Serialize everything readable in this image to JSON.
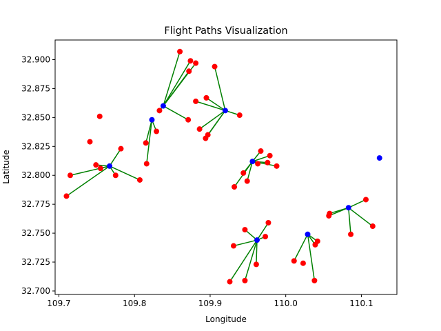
{
  "chart_data": {
    "type": "scatter",
    "title": "Flight Paths Visualization",
    "xlabel": "Longitude",
    "ylabel": "Latitude",
    "xlim": [
      109.695,
      110.147
    ],
    "ylim": [
      32.697,
      32.917
    ],
    "xticks": [
      109.7,
      109.8,
      109.9,
      110.0,
      110.1
    ],
    "xtick_labels": [
      "109.7",
      "109.8",
      "109.9",
      "110.0",
      "110.1"
    ],
    "yticks": [
      32.7,
      32.725,
      32.75,
      32.775,
      32.8,
      32.825,
      32.85,
      32.875,
      32.9
    ],
    "ytick_labels": [
      "32.700",
      "32.725",
      "32.750",
      "32.775",
      "32.800",
      "32.825",
      "32.850",
      "32.875",
      "32.900"
    ],
    "grid": false,
    "colors": {
      "hub": "#0000ff",
      "destination": "#ff0000",
      "path": "#008000"
    },
    "hubs": [
      {
        "x": 109.838,
        "y": 32.86,
        "destinations": [
          [
            109.86,
            32.907
          ],
          [
            109.874,
            32.899
          ],
          [
            109.881,
            32.897
          ],
          [
            109.872,
            32.89
          ],
          [
            109.833,
            32.856
          ],
          [
            109.871,
            32.848
          ]
        ]
      },
      {
        "x": 109.823,
        "y": 32.848,
        "destinations": [
          [
            109.829,
            32.838
          ],
          [
            109.815,
            32.828
          ],
          [
            109.816,
            32.81
          ]
        ]
      },
      {
        "x": 109.92,
        "y": 32.856,
        "destinations": [
          [
            109.906,
            32.894
          ],
          [
            109.895,
            32.867
          ],
          [
            109.881,
            32.864
          ],
          [
            109.939,
            32.852
          ],
          [
            109.886,
            32.84
          ],
          [
            109.897,
            32.835
          ],
          [
            109.894,
            32.832
          ]
        ]
      },
      {
        "x": 109.767,
        "y": 32.808,
        "destinations": [
          [
            109.782,
            32.823
          ],
          [
            109.749,
            32.809
          ],
          [
            109.755,
            32.806
          ],
          [
            109.775,
            32.8
          ],
          [
            109.715,
            32.8
          ],
          [
            109.807,
            32.796
          ],
          [
            109.71,
            32.782
          ]
        ]
      },
      {
        "x": 109.956,
        "y": 32.812,
        "destinations": [
          [
            109.967,
            32.821
          ],
          [
            109.979,
            32.817
          ],
          [
            109.963,
            32.81
          ],
          [
            109.976,
            32.811
          ],
          [
            109.988,
            32.808
          ],
          [
            109.944,
            32.802
          ],
          [
            109.949,
            32.795
          ],
          [
            109.932,
            32.79
          ]
        ]
      },
      {
        "x": 110.083,
        "y": 32.772,
        "destinations": [
          [
            110.106,
            32.779
          ],
          [
            110.058,
            32.767
          ],
          [
            110.057,
            32.765
          ],
          [
            110.115,
            32.756
          ],
          [
            110.086,
            32.749
          ]
        ]
      },
      {
        "x": 109.962,
        "y": 32.744,
        "destinations": [
          [
            109.977,
            32.759
          ],
          [
            109.946,
            32.753
          ],
          [
            109.973,
            32.747
          ],
          [
            109.931,
            32.739
          ],
          [
            109.961,
            32.723
          ],
          [
            109.946,
            32.709
          ],
          [
            109.926,
            32.708
          ]
        ]
      },
      {
        "x": 110.029,
        "y": 32.749,
        "destinations": [
          [
            110.042,
            32.743
          ],
          [
            110.039,
            32.74
          ],
          [
            110.011,
            32.726
          ],
          [
            110.038,
            32.709
          ]
        ]
      },
      {
        "x": 110.124,
        "y": 32.815,
        "destinations": []
      }
    ],
    "unconnected_points": [
      {
        "x": 109.754,
        "y": 32.851
      },
      {
        "x": 109.741,
        "y": 32.829
      },
      {
        "x": 110.023,
        "y": 32.724
      }
    ]
  }
}
